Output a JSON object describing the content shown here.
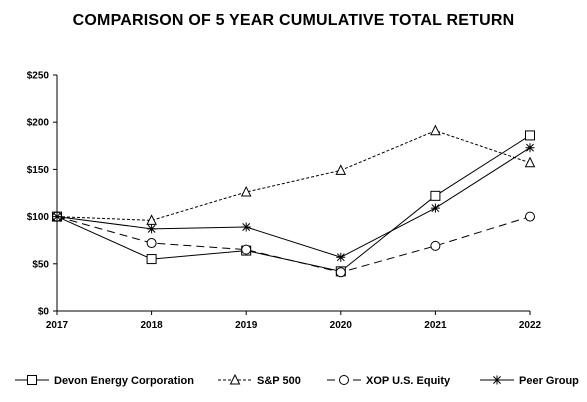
{
  "chart_data": {
    "type": "line",
    "title": "COMPARISON OF 5 YEAR CUMULATIVE TOTAL RETURN",
    "xlabel": "",
    "ylabel": "",
    "x": [
      "2017",
      "2018",
      "2019",
      "2020",
      "2021",
      "2022"
    ],
    "ylim": [
      0,
      250
    ],
    "yticks": [
      0,
      50,
      100,
      150,
      200,
      250
    ],
    "ytick_labels": [
      "$0",
      "$50",
      "$100",
      "$150",
      "$200",
      "$250"
    ],
    "grid": false,
    "legend_position": "bottom",
    "series": [
      {
        "name": "Devon Energy Corporation",
        "marker": "square",
        "dash": "solid",
        "values": [
          100,
          55,
          64,
          42,
          122,
          186
        ]
      },
      {
        "name": "S&P 500",
        "marker": "triangle",
        "dash": "dotted",
        "values": [
          100,
          96,
          126,
          149,
          191,
          157
        ]
      },
      {
        "name": "XOP U.S. Equity",
        "marker": "circle",
        "dash": "dashed",
        "values": [
          100,
          72,
          65,
          41,
          69,
          100
        ]
      },
      {
        "name": "Peer Group",
        "marker": "star",
        "dash": "solid",
        "values": [
          100,
          87,
          89,
          57,
          109,
          173
        ]
      }
    ]
  }
}
